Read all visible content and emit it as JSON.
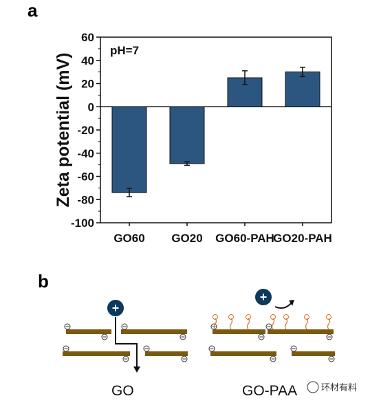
{
  "figure": {
    "panel_a": "a",
    "panel_b": "b"
  },
  "chart_data": {
    "type": "bar",
    "categories": [
      "GO60",
      "GO20",
      "GO60-PAH",
      "GO20-PAH"
    ],
    "values": [
      -74,
      -49,
      25,
      30
    ],
    "errors": [
      3.5,
      1.5,
      6,
      4
    ],
    "ylabel": "Zeta potential (mV)",
    "xlabel": "",
    "ylim": [
      -100,
      60
    ],
    "yticks": [
      -100,
      -80,
      -60,
      -40,
      -20,
      0,
      20,
      40,
      60
    ],
    "annotation": "pH=7",
    "bar_color": "#2c5680",
    "grid": false
  },
  "diagram": {
    "left_label": "GO",
    "right_label": "GO-PAA",
    "cation_symbol": "+",
    "sheet_color": "#7a5a10",
    "cation_color": "#0d3a5c",
    "chain_color": "#d9732b"
  },
  "watermark": "环材有料"
}
